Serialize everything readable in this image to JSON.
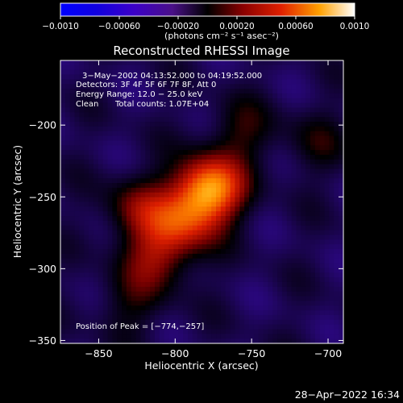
{
  "chart_data": {
    "type": "heatmap",
    "title": "Reconstructed RHESSI Image",
    "xlabel": "Heliocentric X (arcsec)",
    "ylabel": "Heliocentric Y (arcsec)",
    "xlim": [
      -875,
      -690
    ],
    "ylim": [
      -352,
      -155
    ],
    "x_ticks": [
      -850,
      -800,
      -750,
      -700
    ],
    "y_ticks": [
      -200,
      -250,
      -300,
      -350
    ],
    "x_tick_labels": [
      "−850",
      "−800",
      "−750",
      "−700"
    ],
    "y_tick_labels": [
      "−200",
      "−250",
      "−300",
      "−350"
    ],
    "colorbar": {
      "range": [
        -0.001,
        0.001
      ],
      "ticks": [
        -0.001,
        -0.0006,
        -0.0002,
        0.0002,
        0.0006,
        0.001
      ],
      "tick_labels": [
        "−0.0010",
        "−0.00060",
        "−0.00020",
        "0.00020",
        "0.00060",
        "0.0010"
      ],
      "units_label": "(photons cm⁻² s⁻¹ asec⁻²)"
    },
    "annotations": {
      "time": "3−May−2002 04:13:52.000 to 04:19:52.000",
      "detectors": "Detectors: 3F 4F 5F 6F 7F 8F, Att 0",
      "energy": "Energy Range: 12.0 − 25.0 keV",
      "clean": "Clean",
      "counts": "Total counts: 1.07E+04",
      "peak": "Position of Peak = [−774,−257]"
    },
    "peak": {
      "x": -774,
      "y": -257
    },
    "sources": [
      {
        "x": -778,
        "y": -245,
        "amplitude": 0.00095
      },
      {
        "x": -795,
        "y": -268,
        "amplitude": 0.0005
      },
      {
        "x": -812,
        "y": -292,
        "amplitude": 0.00042
      },
      {
        "x": -825,
        "y": -258,
        "amplitude": 0.00035
      },
      {
        "x": -756,
        "y": -205,
        "amplitude": 0.00025
      },
      {
        "x": -706,
        "y": -212,
        "amplitude": 0.00018
      },
      {
        "x": -830,
        "y": -325,
        "amplitude": 0.0002
      }
    ]
  },
  "footer": {
    "timestamp": "28−Apr−2022 16:34"
  }
}
